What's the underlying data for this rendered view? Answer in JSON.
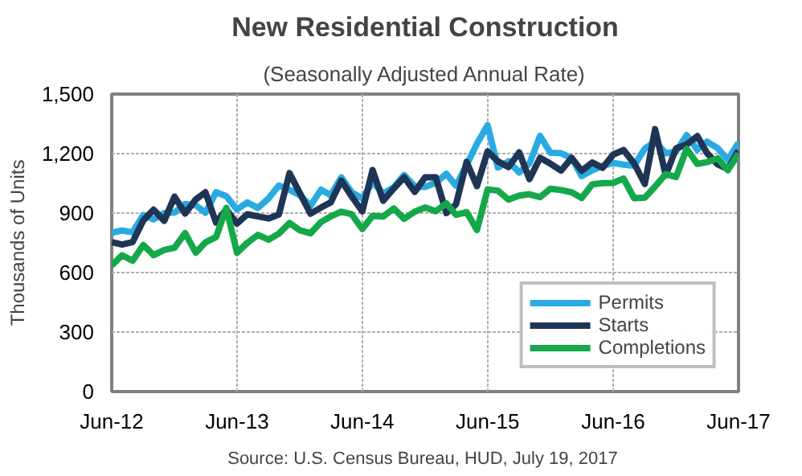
{
  "chart_data": {
    "type": "line",
    "title": "New Residential Construction",
    "subtitle": "(Seasonally Adjusted Annual Rate)",
    "ylabel": "Thousands of Units",
    "annotations": [
      "Source:  U.S. Census Bureau, HUD, July 19, 2017"
    ],
    "x": [
      "2012-06",
      "2012-07",
      "2012-08",
      "2012-09",
      "2012-10",
      "2012-11",
      "2012-12",
      "2013-01",
      "2013-02",
      "2013-03",
      "2013-04",
      "2013-05",
      "2013-06",
      "2013-07",
      "2013-08",
      "2013-09",
      "2013-10",
      "2013-11",
      "2013-12",
      "2014-01",
      "2014-02",
      "2014-03",
      "2014-04",
      "2014-05",
      "2014-06",
      "2014-07",
      "2014-08",
      "2014-09",
      "2014-10",
      "2014-11",
      "2014-12",
      "2015-01",
      "2015-02",
      "2015-03",
      "2015-04",
      "2015-05",
      "2015-06",
      "2015-07",
      "2015-08",
      "2015-09",
      "2015-10",
      "2015-11",
      "2015-12",
      "2016-01",
      "2016-02",
      "2016-03",
      "2016-04",
      "2016-05",
      "2016-06",
      "2016-07",
      "2016-08",
      "2016-09",
      "2016-10",
      "2016-11",
      "2016-12",
      "2017-01",
      "2017-02",
      "2017-03",
      "2017-04",
      "2017-05",
      "2017-06"
    ],
    "series": [
      {
        "name": "Permits",
        "color": "#29abe2",
        "values": [
          800,
          812,
          803,
          890,
          868,
          900,
          903,
          946,
          939,
          902,
          1005,
          985,
          918,
          954,
          926,
          974,
          1039,
          1017,
          991,
          937,
          1018,
          990,
          1080,
          1005,
          973,
          1057,
          998,
          1031,
          1092,
          1035,
          1032,
          1053,
          1098,
          1038,
          1143,
          1250,
          1343,
          1130,
          1161,
          1105,
          1150,
          1289,
          1204,
          1202,
          1177,
          1086,
          1116,
          1138,
          1153,
          1144,
          1139,
          1225,
          1260,
          1201,
          1210,
          1293,
          1219,
          1260,
          1228,
          1168,
          1254
        ]
      },
      {
        "name": "Starts",
        "color": "#1f3556",
        "values": [
          754,
          741,
          754,
          863,
          917,
          861,
          983,
          898,
          969,
          1005,
          852,
          919,
          847,
          894,
          883,
          873,
          893,
          1101,
          1001,
          897,
          928,
          954,
          1063,
          984,
          909,
          1117,
          962,
          1025,
          1080,
          1007,
          1080,
          1080,
          900,
          944,
          1158,
          1036,
          1211,
          1161,
          1132,
          1206,
          1071,
          1179,
          1149,
          1114,
          1178,
          1113,
          1155,
          1128,
          1195,
          1218,
          1150,
          1047,
          1323,
          1090,
          1226,
          1246,
          1288,
          1203,
          1146,
          1122,
          1215
        ]
      },
      {
        "name": "Completions",
        "color": "#14a84a",
        "values": [
          636,
          687,
          660,
          739,
          688,
          714,
          725,
          799,
          700,
          752,
          779,
          926,
          700,
          750,
          790,
          766,
          796,
          850,
          813,
          798,
          855,
          883,
          907,
          894,
          820,
          886,
          883,
          923,
          871,
          907,
          928,
          909,
          949,
          891,
          905,
          815,
          1019,
          1013,
          968,
          988,
          995,
          980,
          1023,
          1016,
          1005,
          976,
          1045,
          1051,
          1052,
          1074,
          975,
          978,
          1034,
          1096,
          1082,
          1224,
          1148,
          1157,
          1176,
          1116,
          1200
        ]
      }
    ],
    "xlim": [
      "2012-06",
      "2017-06"
    ],
    "xticks": [
      {
        "value": "2012-06",
        "label": "Jun-12"
      },
      {
        "value": "2013-06",
        "label": "Jun-13"
      },
      {
        "value": "2014-06",
        "label": "Jun-14"
      },
      {
        "value": "2015-06",
        "label": "Jun-15"
      },
      {
        "value": "2016-06",
        "label": "Jun-16"
      },
      {
        "value": "2017-06",
        "label": "Jun-17"
      }
    ],
    "ylim": [
      0,
      1500
    ],
    "yticks": [
      0,
      {
        "value": 300,
        "label": "300"
      },
      {
        "value": 600,
        "label": "600"
      },
      {
        "value": 900,
        "label": "900"
      },
      {
        "value": 1200,
        "label": "1,200"
      },
      {
        "value": 1500,
        "label": "1,500"
      }
    ],
    "grid": true,
    "legend": "bottom right",
    "marker": "none",
    "line_style": "solid"
  }
}
